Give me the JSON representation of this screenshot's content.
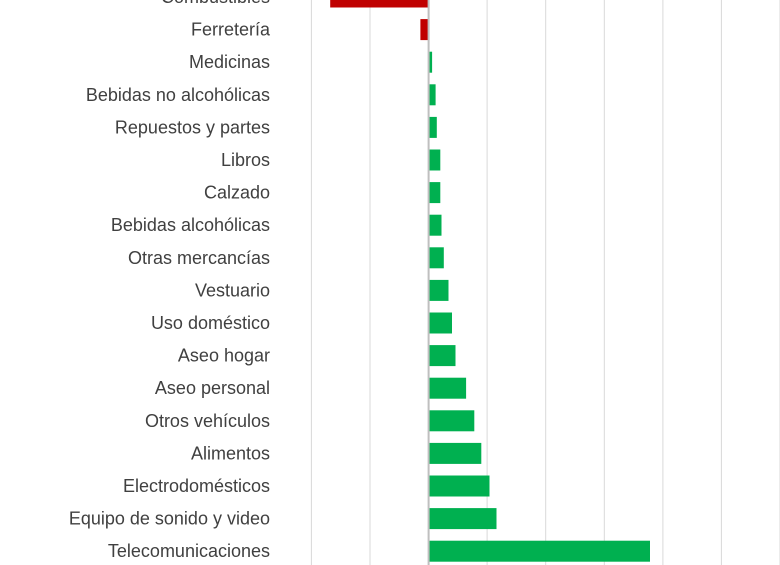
{
  "chart_data": {
    "type": "bar",
    "orientation": "horizontal",
    "categories": [
      "Combustibles",
      "Ferretería",
      "Medicinas",
      "Bebidas no alcohólicas",
      "Repuestos y partes",
      "Libros",
      "Calzado",
      "Bebidas alcohólicas",
      "Otras mercancías",
      "Vestuario",
      "Uso doméstico",
      "Aseo hogar",
      "Aseo personal",
      "Otros vehículos",
      "Alimentos",
      "Electrodomésticos",
      "Equipo de sonido y video",
      "Telecomunicaciones"
    ],
    "values": [
      -8.4,
      -0.7,
      0.3,
      0.6,
      0.7,
      1.0,
      1.0,
      1.1,
      1.3,
      1.7,
      2.0,
      2.3,
      3.2,
      3.9,
      4.5,
      5.2,
      5.8,
      18.9
    ],
    "xlim": [
      -12,
      30
    ],
    "grid": true,
    "colors": {
      "positive": "#00B050",
      "negative": "#C00000",
      "grid": "#D9D9D9",
      "zero_line": "#BFBFBF",
      "label": "#404040"
    }
  }
}
